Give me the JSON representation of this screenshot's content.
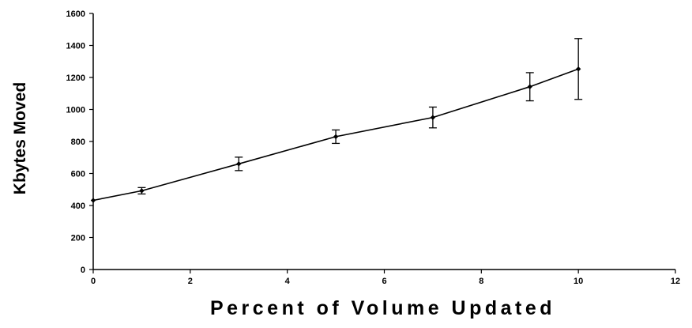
{
  "chart_data": {
    "type": "line",
    "title": "",
    "xlabel": "Percent of Volume Updated",
    "ylabel": "Kbytes Moved",
    "xlim": [
      0,
      12
    ],
    "ylim": [
      0,
      1600
    ],
    "x_ticks": [
      "0",
      "2",
      "4",
      "6",
      "8",
      "10",
      "12"
    ],
    "y_ticks": [
      "0",
      "200",
      "400",
      "600",
      "800",
      "1000",
      "1200",
      "1400",
      "1600"
    ],
    "grid": false,
    "legend": "none",
    "series": [
      {
        "color": "#000000",
        "points": [
          {
            "x": 0,
            "y": 432,
            "err": 0
          },
          {
            "x": 1,
            "y": 492,
            "err": 20
          },
          {
            "x": 3,
            "y": 660,
            "err": 42
          },
          {
            "x": 5,
            "y": 830,
            "err": 42
          },
          {
            "x": 7,
            "y": 950,
            "err": 65
          },
          {
            "x": 9,
            "y": 1142,
            "err": 88
          },
          {
            "x": 10,
            "y": 1253,
            "err": 190
          }
        ]
      }
    ]
  }
}
